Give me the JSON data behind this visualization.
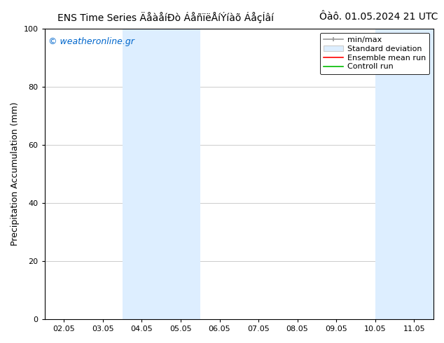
{
  "title_left": "ENS Time Series ÄåàåíÐò ÁåñïëÅíÝíàõ ÁåçÍâí",
  "title_right": "Ôàô. 01.05.2024 21 UTC",
  "ylabel": "Precipitation Accumulation (mm)",
  "ylim": [
    0,
    100
  ],
  "yticks": [
    0,
    20,
    40,
    60,
    80,
    100
  ],
  "xtick_labels": [
    "02.05",
    "03.05",
    "04.05",
    "05.05",
    "06.05",
    "07.05",
    "08.05",
    "09.05",
    "10.05",
    "11.05"
  ],
  "xlim": [
    0,
    9
  ],
  "shaded_band1_x1": 2,
  "shaded_band1_x2": 4,
  "shaded_band2_x1": 8.5,
  "shaded_band2_x2": 9,
  "shade_color": "#ddeeff",
  "watermark": "© weatheronline.gr",
  "watermark_color": "#0066cc",
  "background_color": "#ffffff",
  "legend_minmax_color": "#999999",
  "legend_std_color": "#cccccc",
  "legend_ensemble_color": "#ff0000",
  "legend_control_color": "#00bb00",
  "grid_color": "#cccccc",
  "font_size_title": 10,
  "font_size_axis": 9,
  "font_size_tick": 8,
  "font_size_legend": 8,
  "font_size_watermark": 9
}
